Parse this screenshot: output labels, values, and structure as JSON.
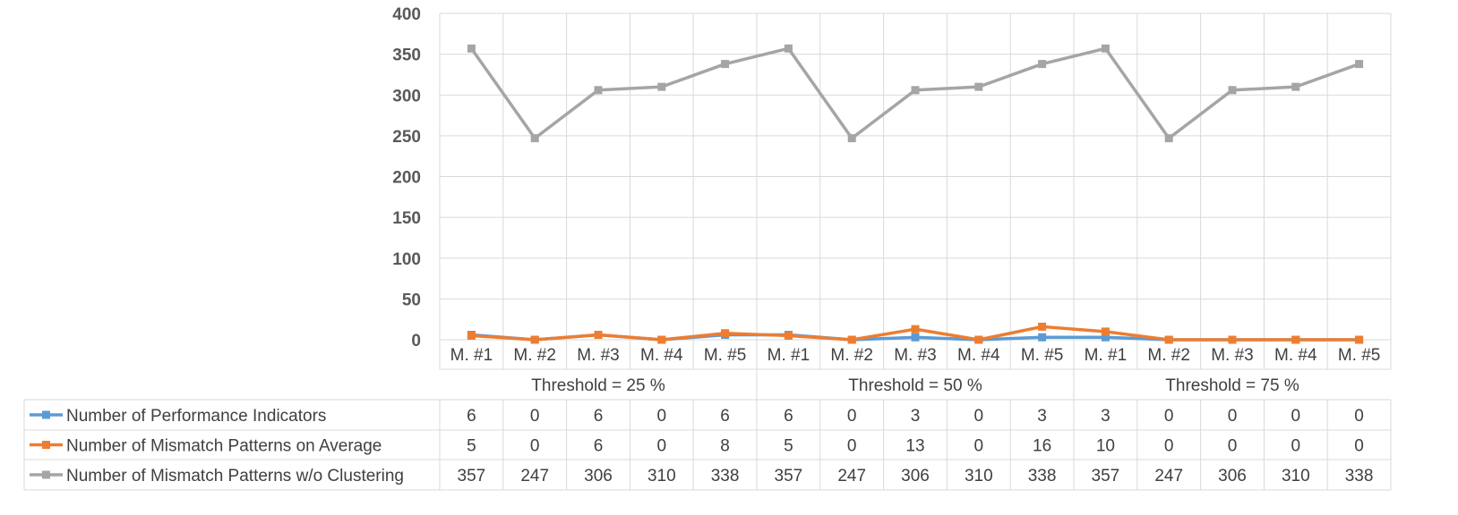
{
  "chart_data": {
    "type": "line",
    "categories": [
      "M. #1",
      "M. #2",
      "M. #3",
      "M. #4",
      "M. #5",
      "M. #1",
      "M. #2",
      "M. #3",
      "M. #4",
      "M. #5",
      "M. #1",
      "M. #2",
      "M. #3",
      "M. #4",
      "M. #5"
    ],
    "groups": [
      {
        "label": "Threshold = 25 %",
        "span": 5
      },
      {
        "label": "Threshold = 50 %",
        "span": 5
      },
      {
        "label": "Threshold = 75 %",
        "span": 5
      }
    ],
    "series": [
      {
        "name": "Number of Performance Indicators",
        "color": "#5b9bd5",
        "values": [
          6,
          0,
          6,
          0,
          6,
          6,
          0,
          3,
          0,
          3,
          3,
          0,
          0,
          0,
          0
        ]
      },
      {
        "name": "Number of Mismatch Patterns on Average",
        "color": "#ed7d31",
        "values": [
          5,
          0,
          6,
          0,
          8,
          5,
          0,
          13,
          0,
          16,
          10,
          0,
          0,
          0,
          0
        ]
      },
      {
        "name": "Number of Mismatch Patterns w/o Clustering",
        "color": "#a5a5a5",
        "values": [
          357,
          247,
          306,
          310,
          338,
          357,
          247,
          306,
          310,
          338,
          357,
          247,
          306,
          310,
          338
        ]
      }
    ],
    "ylim": [
      0,
      400
    ],
    "yticks": [
      0,
      50,
      100,
      150,
      200,
      250,
      300,
      350,
      400
    ],
    "grid": true,
    "legend": "data table (bottom-left)"
  }
}
